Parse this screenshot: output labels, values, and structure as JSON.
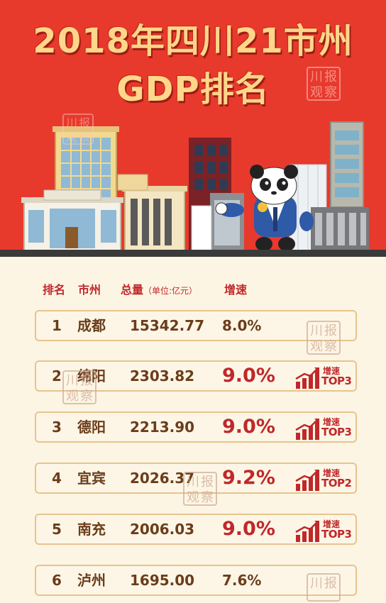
{
  "title": {
    "line1": "2018年四川21市州",
    "line2": "GDP排名"
  },
  "watermark": {
    "chars": [
      "川",
      "报",
      "观",
      "察"
    ]
  },
  "table": {
    "headers": {
      "rank": "排名",
      "city": "市州",
      "total": "总量",
      "unit": "（单位:亿元）",
      "growth": "增速"
    },
    "rows": [
      {
        "rank": "1",
        "city": "成都",
        "total": "15342.77",
        "growth": "8.0%",
        "highlight": false
      },
      {
        "rank": "2",
        "city": "绵阳",
        "total": "2303.82",
        "growth": "9.0%",
        "highlight": true,
        "badge_top": "增速",
        "badge_bottom": "TOP3"
      },
      {
        "rank": "3",
        "city": "德阳",
        "total": "2213.90",
        "growth": "9.0%",
        "highlight": true,
        "badge_top": "增速",
        "badge_bottom": "TOP3"
      },
      {
        "rank": "4",
        "city": "宜宾",
        "total": "2026.37",
        "growth": "9.2%",
        "highlight": true,
        "badge_top": "增速",
        "badge_bottom": "TOP2"
      },
      {
        "rank": "5",
        "city": "南充",
        "total": "2006.03",
        "growth": "9.0%",
        "highlight": true,
        "badge_top": "增速",
        "badge_bottom": "TOP3"
      },
      {
        "rank": "6",
        "city": "泸州",
        "total": "1695.00",
        "growth": "7.6%",
        "highlight": false
      }
    ]
  },
  "colors": {
    "banner_red": "#e8392d",
    "title_gold": "#ffd68a",
    "accent_red": "#c0282b",
    "row_border": "#e6c48e",
    "text_brown": "#6b3d1b",
    "page_bg": "#fdf5e3"
  }
}
